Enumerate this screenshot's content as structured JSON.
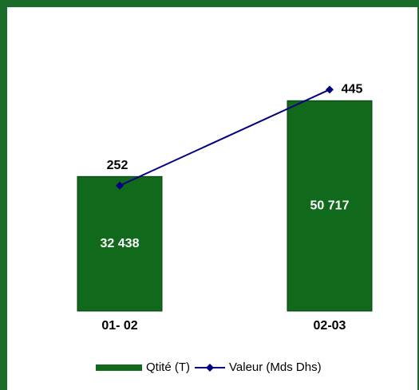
{
  "chart_data": {
    "type": "bar-line",
    "categories": [
      "01- 02",
      "02-03"
    ],
    "series": [
      {
        "name": "Qtité (T)",
        "type": "bar",
        "color": "#116a1c",
        "values": [
          32438,
          50717
        ],
        "value_labels": [
          "32 438",
          "50 717"
        ]
      },
      {
        "name": "Valeur (Mds Dhs)",
        "type": "line",
        "axis": "y2",
        "color": "#000080",
        "values": [
          252,
          445
        ]
      }
    ],
    "ylim": [
      0,
      60000
    ],
    "y2lim": [
      0,
      500
    ],
    "legend": "bottom"
  }
}
